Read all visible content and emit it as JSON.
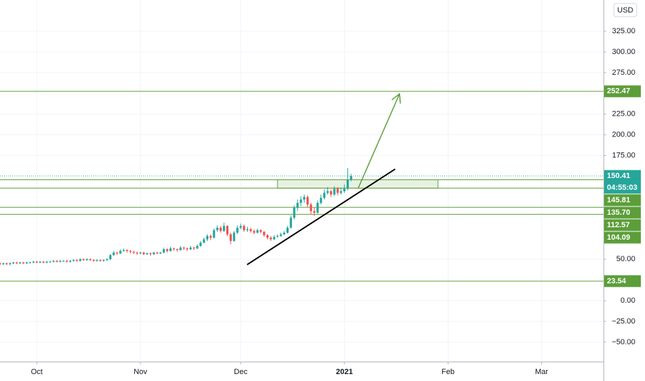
{
  "chart_data": {
    "type": "candlestick",
    "currency": "USD",
    "up_color": "#26a69a",
    "down_color": "#ef5350",
    "xlim": [
      -11,
      169.5
    ],
    "xticks": [
      {
        "value": 0,
        "label": "Oct"
      },
      {
        "value": 31,
        "label": "Nov"
      },
      {
        "value": 61,
        "label": "Dec"
      },
      {
        "value": 92,
        "label": "2021"
      },
      {
        "value": 123,
        "label": "Feb"
      },
      {
        "value": 151,
        "label": "Mar"
      }
    ],
    "ylim": [
      -73.5,
      362.6
    ],
    "yticks": [
      {
        "value": 325,
        "label": "325.00"
      },
      {
        "value": 300,
        "label": "300.00"
      },
      {
        "value": 275,
        "label": "275.00"
      },
      {
        "value": 225,
        "label": "225.00"
      },
      {
        "value": 200,
        "label": "200.00"
      },
      {
        "value": 175,
        "label": "175.00"
      },
      {
        "value": 50,
        "label": "50.00"
      },
      {
        "value": 0,
        "label": "0.00"
      },
      {
        "value": -25,
        "label": "−25.00"
      },
      {
        "value": -50,
        "label": "−50.00"
      }
    ],
    "grid": true,
    "x": [
      -11,
      -10,
      -9,
      -8,
      -7,
      -6,
      -5,
      -4,
      -3,
      -2,
      -1,
      0,
      1,
      2,
      3,
      4,
      5,
      6,
      7,
      8,
      9,
      10,
      11,
      12,
      13,
      14,
      15,
      16,
      17,
      18,
      19,
      20,
      21,
      22,
      23,
      24,
      25,
      26,
      27,
      28,
      29,
      30,
      31,
      32,
      33,
      34,
      35,
      36,
      37,
      38,
      39,
      40,
      41,
      42,
      43,
      44,
      45,
      46,
      47,
      48,
      49,
      50,
      51,
      52,
      53,
      54,
      55,
      56,
      57,
      58,
      59,
      60,
      61,
      62,
      63,
      64,
      65,
      66,
      67,
      68,
      69,
      70,
      71,
      72,
      73,
      74,
      75,
      76,
      77,
      78,
      79,
      80,
      81,
      82,
      83,
      84,
      85,
      86,
      87,
      88,
      89,
      90,
      91,
      92,
      93,
      94
    ],
    "candles": [
      [
        45,
        46.5,
        43,
        44
      ],
      [
        44,
        46,
        43,
        45
      ],
      [
        45,
        46,
        43,
        44
      ],
      [
        44,
        46,
        43,
        45
      ],
      [
        45,
        47,
        44,
        46
      ],
      [
        46,
        47,
        44,
        45
      ],
      [
        45,
        47,
        44,
        46
      ],
      [
        46,
        47,
        44,
        45
      ],
      [
        45,
        47,
        44,
        46
      ],
      [
        46,
        47,
        45,
        46
      ],
      [
        46,
        48,
        45,
        47
      ],
      [
        47,
        48,
        45,
        46
      ],
      [
        46,
        48,
        45,
        47
      ],
      [
        47,
        48,
        45,
        46
      ],
      [
        46,
        48,
        45,
        47
      ],
      [
        47,
        48,
        46,
        47
      ],
      [
        47,
        49,
        46,
        48
      ],
      [
        48,
        49,
        46,
        47
      ],
      [
        47,
        49,
        46,
        48
      ],
      [
        48,
        49,
        47,
        48
      ],
      [
        48,
        49,
        46,
        47
      ],
      [
        47,
        49,
        46,
        48
      ],
      [
        48,
        50,
        47,
        49
      ],
      [
        49,
        50,
        47,
        48
      ],
      [
        48,
        51,
        47,
        50
      ],
      [
        50,
        51,
        48,
        49
      ],
      [
        49,
        51,
        48,
        50
      ],
      [
        50,
        51,
        48,
        49
      ],
      [
        49,
        50,
        47,
        48
      ],
      [
        48,
        50,
        47,
        49
      ],
      [
        49,
        50,
        47,
        48
      ],
      [
        48,
        50,
        47,
        49
      ],
      [
        49,
        51,
        48,
        50
      ],
      [
        50,
        56,
        49,
        55
      ],
      [
        55,
        60,
        54,
        58
      ],
      [
        58,
        59,
        55,
        57
      ],
      [
        57,
        62,
        56,
        60
      ],
      [
        60,
        63,
        59,
        61
      ],
      [
        61,
        62,
        58,
        60
      ],
      [
        60,
        61,
        57,
        59
      ],
      [
        59,
        60,
        56,
        58
      ],
      [
        58,
        59,
        55,
        57
      ],
      [
        57,
        59,
        56,
        58
      ],
      [
        58,
        59,
        55,
        56
      ],
      [
        56,
        58,
        55,
        57
      ],
      [
        57,
        58,
        54,
        56
      ],
      [
        56,
        59,
        55,
        58
      ],
      [
        58,
        59,
        56,
        57
      ],
      [
        57,
        59,
        56,
        58
      ],
      [
        58,
        64,
        57,
        62
      ],
      [
        62,
        63,
        58,
        60
      ],
      [
        60,
        65,
        59,
        63
      ],
      [
        63,
        64,
        60,
        62
      ],
      [
        62,
        63,
        59,
        61
      ],
      [
        61,
        66,
        60,
        64
      ],
      [
        64,
        65,
        61,
        63
      ],
      [
        63,
        64,
        60,
        62
      ],
      [
        62,
        66,
        61,
        64
      ],
      [
        64,
        65,
        61,
        63
      ],
      [
        63,
        68,
        62,
        66
      ],
      [
        66,
        72,
        65,
        70
      ],
      [
        70,
        76,
        69,
        74
      ],
      [
        74,
        80,
        72,
        78
      ],
      [
        78,
        80,
        73,
        76
      ],
      [
        76,
        87,
        75,
        85
      ],
      [
        85,
        91,
        83,
        88
      ],
      [
        88,
        90,
        82,
        84
      ],
      [
        84,
        94,
        83,
        90
      ],
      [
        90,
        91,
        78,
        80
      ],
      [
        80,
        82,
        68,
        72
      ],
      [
        72,
        84,
        71,
        82
      ],
      [
        82,
        91,
        80,
        88
      ],
      [
        88,
        93,
        86,
        90
      ],
      [
        90,
        92,
        83,
        85
      ],
      [
        85,
        89,
        83,
        86
      ],
      [
        86,
        88,
        82,
        84
      ],
      [
        84,
        86,
        80,
        82
      ],
      [
        82,
        87,
        81,
        85
      ],
      [
        85,
        86,
        81,
        83
      ],
      [
        83,
        84,
        77,
        79
      ],
      [
        79,
        80,
        74,
        76
      ],
      [
        76,
        78,
        72,
        74
      ],
      [
        74,
        79,
        73,
        77
      ],
      [
        77,
        80,
        76,
        78
      ],
      [
        78,
        82,
        77,
        80
      ],
      [
        80,
        84,
        79,
        82
      ],
      [
        82,
        90,
        81,
        88
      ],
      [
        88,
        103,
        87,
        100
      ],
      [
        100,
        115,
        98,
        112
      ],
      [
        112,
        122,
        108,
        118
      ],
      [
        118,
        126,
        114,
        122
      ],
      [
        122,
        128,
        118,
        125
      ],
      [
        125,
        127,
        113,
        116
      ],
      [
        116,
        118,
        104,
        108
      ],
      [
        108,
        112,
        102,
        106
      ],
      [
        106,
        121,
        105,
        118
      ],
      [
        118,
        128,
        116,
        124
      ],
      [
        124,
        134,
        122,
        130
      ],
      [
        130,
        137,
        128,
        132
      ],
      [
        132,
        134,
        125,
        128
      ],
      [
        128,
        138,
        126,
        135
      ],
      [
        135,
        137,
        127,
        130
      ],
      [
        130,
        136,
        128,
        132
      ],
      [
        132,
        140,
        130,
        135
      ],
      [
        135,
        160,
        133,
        146
      ],
      [
        146,
        153,
        144,
        150.41
      ]
    ],
    "countdown": "04:55:03",
    "levels": {
      "values": [
        252.47,
        145.81,
        135.7,
        112.57,
        104.09,
        23.54
      ],
      "value_labels": [
        "252.47",
        "145.81",
        "135.70",
        "112.57",
        "104.09",
        "23.54"
      ],
      "color": "#5c9e3a"
    },
    "zone": {
      "x": [
        72,
        120
      ],
      "y": [
        135.7,
        145.81
      ],
      "color": "rgba(92,158,58,0.15)"
    },
    "trend_line": {
      "x": [
        62.9,
        107.2
      ],
      "y": [
        43.4,
        158.7
      ],
      "color": "#000000"
    },
    "arrow": {
      "x": [
        96.1,
        108.5
      ],
      "y": [
        135.3,
        249.4
      ],
      "color": "#5c9e3a"
    }
  }
}
